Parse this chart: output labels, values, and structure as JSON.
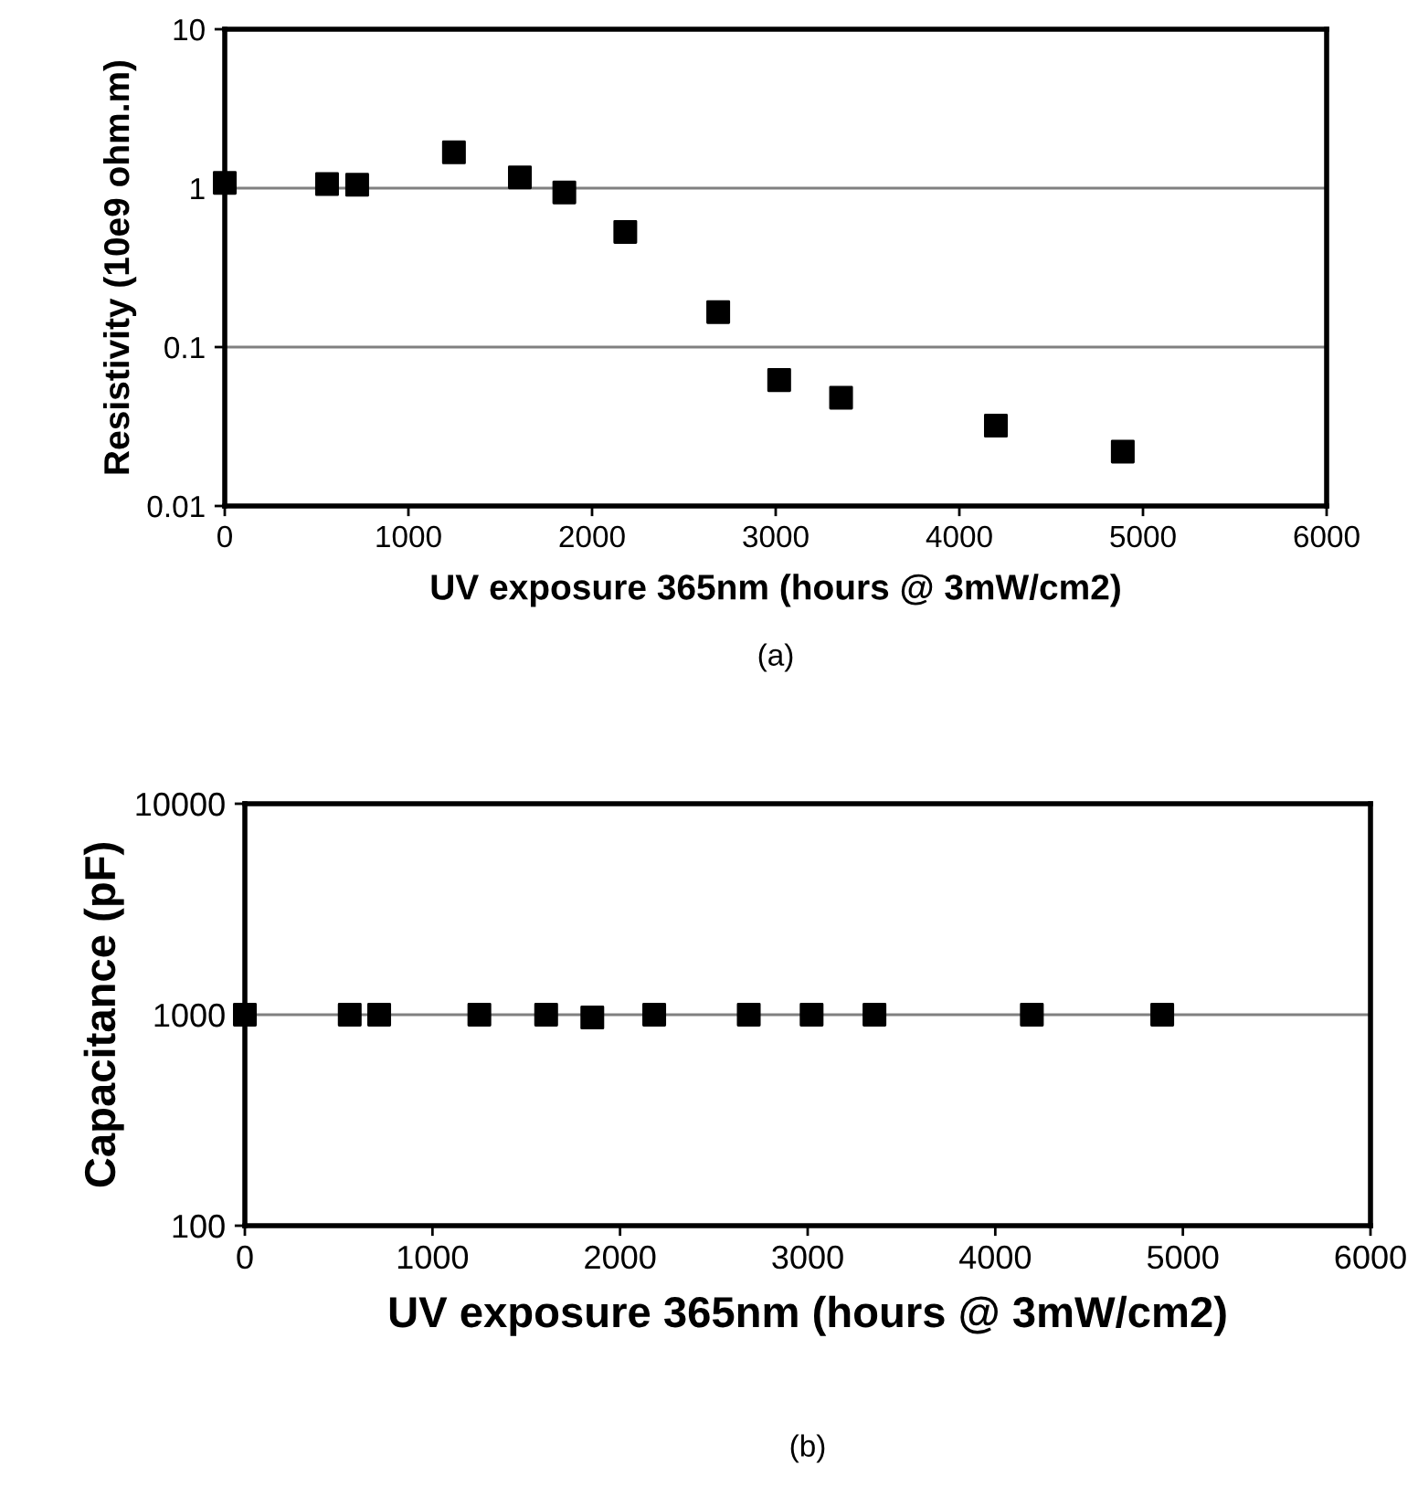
{
  "chart_data": [
    {
      "type": "scatter",
      "xlabel": "UV exposure 365nm (hours @ 3mW/cm2)",
      "ylabel": "Resistivity (10e9 ohm.m)",
      "annotations": [
        "(a)"
      ],
      "log": "y",
      "grid": "y",
      "marker": "square",
      "legend": false,
      "x": [
        0,
        557,
        721,
        1248,
        1607,
        1849,
        2181,
        2687,
        3019,
        3356,
        4199,
        4890
      ],
      "series": [
        {
          "color": "#000000",
          "values": [
            1.08,
            1.06,
            1.05,
            1.68,
            1.17,
            0.94,
            0.53,
            0.166,
            0.062,
            0.048,
            0.032,
            0.022
          ]
        }
      ],
      "xlim": [
        0,
        6000
      ],
      "xticks": [
        0,
        1000,
        2000,
        3000,
        4000,
        5000,
        6000
      ],
      "ylim": [
        0.01,
        10
      ],
      "yticks": [
        0.01,
        0.1,
        1,
        10
      ]
    },
    {
      "type": "scatter",
      "xlabel": "UV exposure 365nm (hours @ 3mW/cm2)",
      "ylabel": "Capacitance (pF)",
      "annotations": [
        "(b)"
      ],
      "log": "y",
      "grid": "y",
      "marker": "square",
      "legend": false,
      "x": [
        0,
        559,
        716,
        1250,
        1606,
        1852,
        2182,
        2686,
        3021,
        3356,
        4195,
        4890
      ],
      "series": [
        {
          "color": "#000000",
          "values": [
            1000,
            1000,
            1000,
            1000,
            1000,
            970,
            1000,
            1000,
            1000,
            1000,
            1000,
            1000
          ]
        }
      ],
      "xlim": [
        0,
        6000
      ],
      "xticks": [
        0,
        1000,
        2000,
        3000,
        4000,
        5000,
        6000
      ],
      "ylim": [
        100,
        10000
      ],
      "yticks": [
        100,
        1000,
        10000
      ]
    }
  ]
}
